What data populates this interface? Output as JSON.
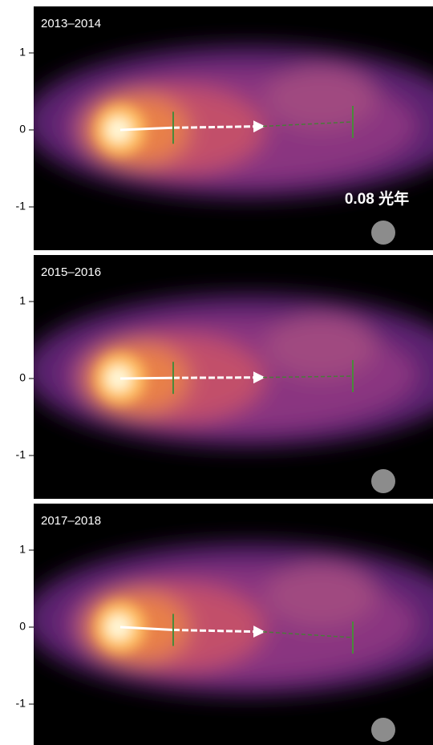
{
  "scale_label": "0.08 光年",
  "panels": [
    {
      "label": "2013–2014",
      "yticks": [
        1,
        0,
        -1
      ]
    },
    {
      "label": "2015–2016",
      "yticks": [
        1,
        0,
        -1
      ]
    },
    {
      "label": "2017–2018",
      "yticks": [
        1,
        0,
        -1
      ]
    }
  ]
}
